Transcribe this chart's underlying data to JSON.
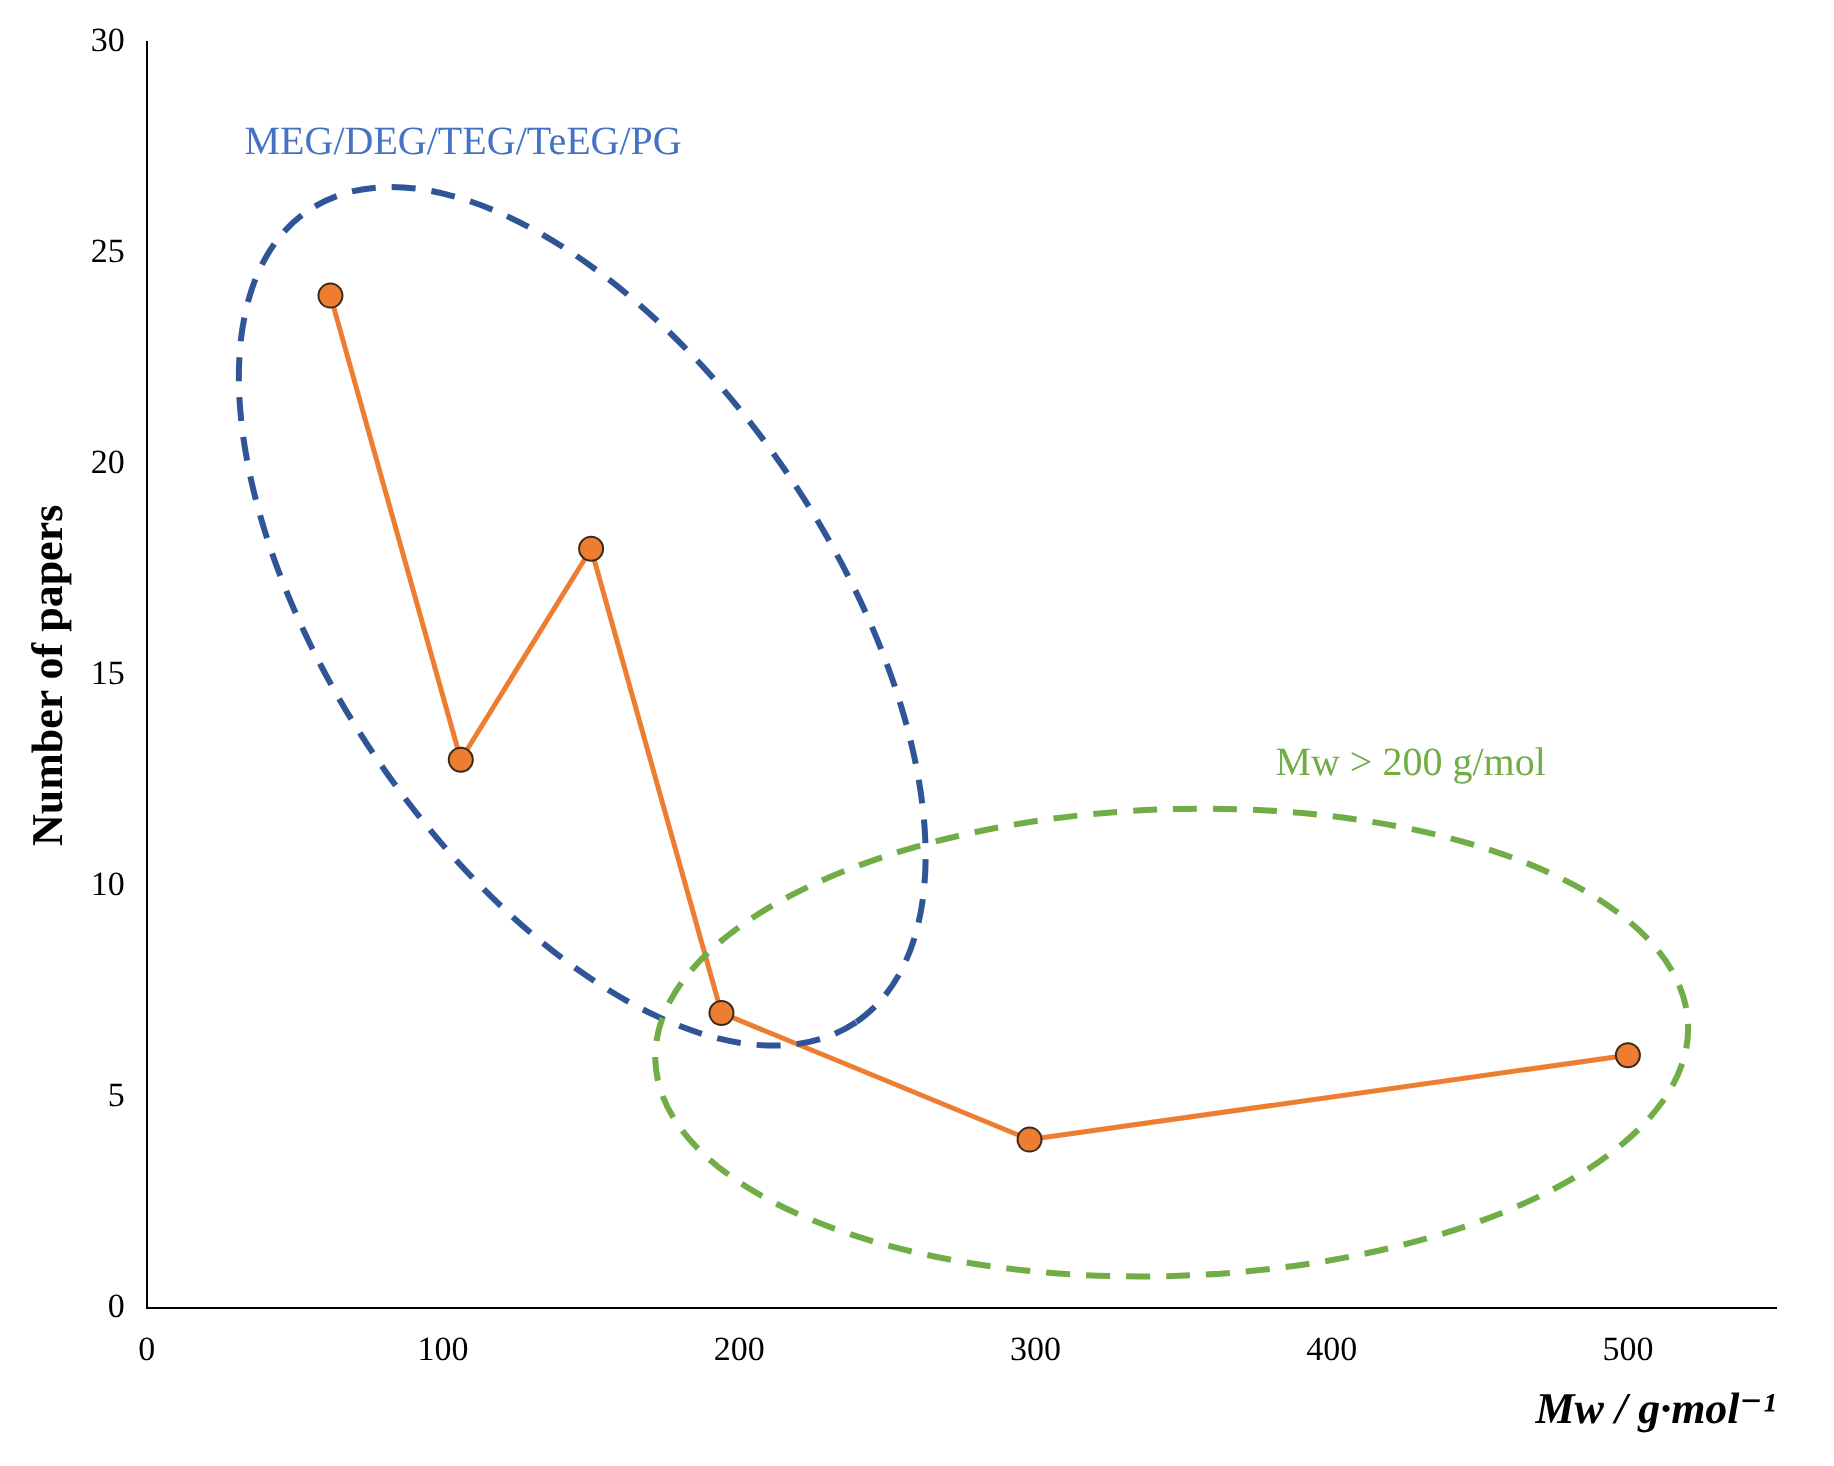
{
  "chart_data": {
    "type": "line",
    "x": [
      62,
      106,
      150,
      194,
      298,
      500
    ],
    "values": [
      24,
      13,
      18,
      7,
      4,
      6
    ],
    "color": "#ed7d31",
    "marker": "circle",
    "line_style": "solid",
    "xlim": [
      0,
      550
    ],
    "xticks": [
      0,
      100,
      200,
      300,
      400,
      500
    ],
    "ylim": [
      0,
      30
    ],
    "yticks": [
      0,
      5,
      10,
      15,
      20,
      25,
      30
    ],
    "xlabel": "Mw / g·mol⁻¹",
    "ylabel": "Number of papers",
    "grid": false,
    "legend": false,
    "annotations": [
      "MEG/DEG/TEG/TeEG/PG",
      "Mw > 200 g/mol"
    ]
  }
}
